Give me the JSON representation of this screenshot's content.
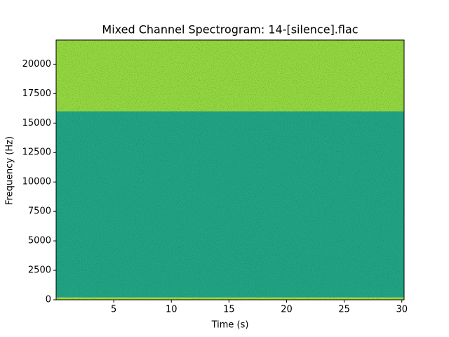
{
  "chart_data": {
    "type": "spectrogram",
    "title": "Mixed Channel Spectrogram: 14-[silence].flac",
    "x_label": "Time (s)",
    "y_label": "Frequency (Hz)",
    "xlim": [
      0,
      30.2
    ],
    "ylim": [
      0,
      22050
    ],
    "xticks": [
      5,
      10,
      15,
      20,
      25,
      30
    ],
    "yticks": [
      0,
      2500,
      5000,
      7500,
      10000,
      12500,
      15000,
      17500,
      20000
    ],
    "bands": [
      {
        "from": 0,
        "to": 200,
        "color": "#a8db34"
      },
      {
        "from": 200,
        "to": 16000,
        "color": "#22a485"
      },
      {
        "from": 16000,
        "to": 22050,
        "color": "#98d83e"
      }
    ]
  }
}
